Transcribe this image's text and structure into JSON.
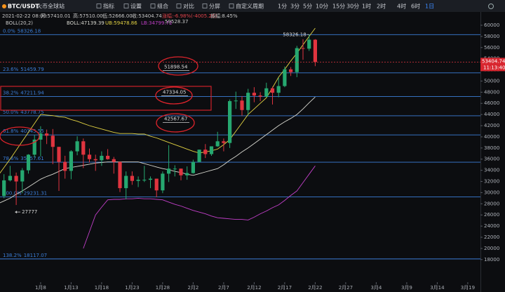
{
  "toolbar": {
    "symbol": "BTC/USDT",
    "exchange": "火币全球站",
    "buttons": [
      "指标",
      "设置",
      "组合",
      "对比",
      "分屏",
      "自定义周期"
    ],
    "periods": [
      "1分",
      "3分",
      "5分",
      "10分",
      "15分",
      "30分",
      "1时",
      "2时",
      "4时",
      "6时",
      "1日"
    ],
    "active_period": 10
  },
  "info": [
    "2021-02-22 08:00",
    "开:57410.01",
    "高:57510.00",
    "低:52666.00",
    "收:53404.74",
    "涨幅:-6.98%(-4005.26)",
    "振幅:8.45%"
  ],
  "boll_info": [
    "BOLL(20,2)",
    "BOLL:47139.39",
    "UB:59478.86",
    "LB:34799.72"
  ],
  "chart_data": {
    "type": "candlestick",
    "categories": [
      null,
      null,
      null,
      null,
      null,
      null,
      null,
      "1月8",
      null,
      null,
      null,
      null,
      "1月13",
      null,
      null,
      null,
      null,
      "1月18",
      null,
      null,
      null,
      null,
      "1月23",
      null,
      null,
      null,
      null,
      "1月28",
      null,
      null,
      null,
      null,
      "2月2",
      null,
      null,
      null,
      null,
      "2月7",
      null,
      null,
      null,
      null,
      "2月12",
      null,
      null,
      null,
      null,
      "2月17",
      null,
      null,
      null,
      null,
      "2月22",
      null,
      null,
      null,
      null,
      "2月27",
      null,
      null,
      null,
      null,
      "3月4",
      null,
      null,
      null,
      null,
      "3月9",
      null,
      null,
      null,
      null,
      "3月14",
      null,
      null,
      null,
      null,
      "3月19"
    ],
    "open": [
      29000,
      29400,
      32200,
      33000,
      32000,
      34000,
      36800,
      39500,
      40600,
      40200,
      38200,
      35500,
      33900,
      37400,
      39200,
      36800,
      36000,
      35800,
      36600,
      36000,
      35500,
      30800,
      33000,
      32100,
      32300,
      32300,
      32500,
      30400,
      33400,
      34300,
      34300,
      33100,
      33500,
      35500,
      37700,
      36900,
      38300,
      39200,
      38900,
      46400,
      46500,
      44800,
      47900,
      47400,
      47200,
      48700,
      47900,
      49100,
      52100,
      51600,
      55900,
      55800,
      57410.01,
      null,
      null,
      null,
      null,
      null,
      null,
      null,
      null,
      null,
      null,
      null,
      null,
      null,
      null,
      null,
      null,
      null,
      null,
      null,
      null,
      null,
      null,
      null,
      null,
      null
    ],
    "high": [
      29600,
      33300,
      34800,
      33600,
      34400,
      36900,
      40300,
      41900,
      41300,
      41400,
      38200,
      36600,
      37600,
      40100,
      39700,
      37900,
      36800,
      37400,
      37800,
      36400,
      35600,
      33800,
      33800,
      32900,
      34800,
      32900,
      32500,
      33800,
      38500,
      34900,
      34300,
      34700,
      35900,
      37700,
      38700,
      38300,
      40900,
      39700,
      46700,
      48100,
      47300,
      48600,
      48900,
      48000,
      49700,
      49000,
      50600,
      52600,
      52500,
      56300,
      57500,
      58326.18,
      57510,
      null,
      null,
      null,
      null,
      null,
      null,
      null,
      null,
      null,
      null,
      null,
      null,
      null,
      null,
      null,
      null,
      null,
      null,
      null,
      null,
      null,
      null,
      null,
      null,
      null
    ],
    "low": [
      28800,
      29000,
      32000,
      27777,
      29900,
      33400,
      36300,
      36500,
      38700,
      35100,
      30300,
      32500,
      32400,
      36700,
      34400,
      35400,
      33900,
      34800,
      35900,
      33400,
      30100,
      28800,
      31400,
      31000,
      31900,
      30800,
      29200,
      29900,
      31900,
      32900,
      32200,
      32300,
      33400,
      35400,
      36200,
      36600,
      38200,
      37400,
      38000,
      45000,
      43800,
      44000,
      46200,
      46400,
      47100,
      45800,
      47100,
      48900,
      50900,
      50700,
      53800,
      55400,
      52666,
      null,
      null,
      null,
      null,
      null,
      null,
      null,
      null,
      null,
      null,
      null,
      null,
      null,
      null,
      null,
      null,
      null,
      null,
      null,
      null,
      null,
      null,
      null,
      null,
      null
    ],
    "close": [
      29400,
      32200,
      33000,
      32000,
      34000,
      36800,
      39500,
      40600,
      40200,
      38200,
      35500,
      33900,
      37400,
      39200,
      36800,
      36000,
      35800,
      36600,
      36000,
      35500,
      30800,
      33000,
      32100,
      32300,
      32300,
      32500,
      30400,
      33400,
      34300,
      34300,
      33100,
      33500,
      35500,
      37700,
      36900,
      38300,
      39200,
      38900,
      46400,
      46500,
      44800,
      47900,
      47400,
      47200,
      48700,
      47900,
      49100,
      52100,
      51600,
      55900,
      55800,
      57410.01,
      53404.74,
      null,
      null,
      null,
      null,
      null,
      null,
      null,
      null,
      null,
      null,
      null,
      null,
      null,
      null,
      null,
      null,
      null,
      null,
      null,
      null,
      null,
      null,
      null,
      null,
      null
    ],
    "up_color": "#26a870",
    "down_color": "#e0343f",
    "boll": {
      "upper": {
        "color": "#e3d342",
        "values": [
          33000,
          34500,
          36000,
          37600,
          39200,
          40800,
          42400,
          44000,
          43900,
          43800,
          43600,
          43500,
          43100,
          42800,
          42400,
          42000,
          41700,
          41400,
          41100,
          40800,
          40600,
          40600,
          40600,
          40500,
          40500,
          40100,
          39800,
          39400,
          39000,
          38600,
          38200,
          37800,
          37400,
          37100,
          37300,
          37500,
          37800,
          38600,
          39500,
          41000,
          42500,
          44000,
          45000,
          46000,
          47000,
          48800,
          50700,
          52100,
          53600,
          55000,
          56500,
          58000,
          59478.86,
          null,
          null,
          null,
          null,
          null,
          null,
          null,
          null,
          null,
          null,
          null,
          null,
          null,
          null,
          null,
          null,
          null,
          null,
          null,
          null,
          null,
          null,
          null,
          null,
          null
        ]
      },
      "middle": {
        "color": "#d8d8d0",
        "values": [
          28000,
          28500,
          29000,
          29700,
          30300,
          31000,
          31700,
          32400,
          32900,
          33300,
          33800,
          34300,
          34500,
          34700,
          34900,
          35100,
          35300,
          35400,
          35500,
          35500,
          35500,
          35500,
          35500,
          35500,
          35200,
          34900,
          34600,
          34300,
          34100,
          33800,
          33600,
          33300,
          33100,
          33400,
          33700,
          34000,
          34300,
          35000,
          35800,
          36500,
          37300,
          38000,
          38800,
          39600,
          40400,
          41200,
          42000,
          42700,
          43300,
          44000,
          45000,
          46100,
          47139.39,
          null,
          null,
          null,
          null,
          null,
          null,
          null,
          null,
          null,
          null,
          null,
          null,
          null,
          null,
          null,
          null,
          null,
          null,
          null,
          null,
          null,
          null,
          null,
          null,
          null
        ]
      },
      "lower": {
        "color": "#c23fc9",
        "values": [
          null,
          null,
          null,
          null,
          null,
          null,
          null,
          null,
          null,
          null,
          null,
          null,
          null,
          null,
          20000,
          23000,
          26000,
          27400,
          28700,
          28800,
          28800,
          28900,
          28900,
          29000,
          28900,
          28900,
          28800,
          28700,
          28300,
          27900,
          27600,
          27200,
          26800,
          26500,
          26200,
          25800,
          25500,
          25400,
          25300,
          25200,
          25200,
          25100,
          25600,
          26200,
          26700,
          27300,
          27800,
          28600,
          29500,
          30300,
          31800,
          33300,
          34799.72,
          null,
          null,
          null,
          null,
          null,
          null,
          null,
          null,
          null,
          null,
          null,
          null,
          null,
          null,
          null,
          null,
          null,
          null,
          null,
          null,
          null,
          null,
          null,
          null,
          null
        ]
      }
    },
    "ylim": [
      14200,
      60750
    ],
    "yticks": [
      18000,
      20000,
      22000,
      24000,
      26000,
      28000,
      30000,
      32000,
      34000,
      36000,
      38000,
      40000,
      42000,
      44000,
      46000,
      48000,
      50000,
      52000,
      54000,
      56000,
      58000,
      60000
    ],
    "fib_color": "#3b7ed8",
    "fib_levels": [
      {
        "ratio": "0.0%",
        "price": 58326.18
      },
      {
        "ratio": "23.6%",
        "price": 51459.79
      },
      {
        "ratio": "38.2%",
        "price": 47211.94
      },
      {
        "ratio": "50.0%",
        "price": 43778.75
      },
      {
        "ratio": "61.8%",
        "price": 40345.55
      },
      {
        "ratio": "78.6%",
        "price": 35457.61
      },
      {
        "ratio": "100.0%",
        "price": 29231.31
      },
      {
        "ratio": "138.2%",
        "price": 18117.07
      }
    ],
    "price_marks": [
      51898.54,
      47334.05,
      42567.67
    ],
    "band_high_label": "59528.37",
    "current_time": "11:13:40"
  }
}
